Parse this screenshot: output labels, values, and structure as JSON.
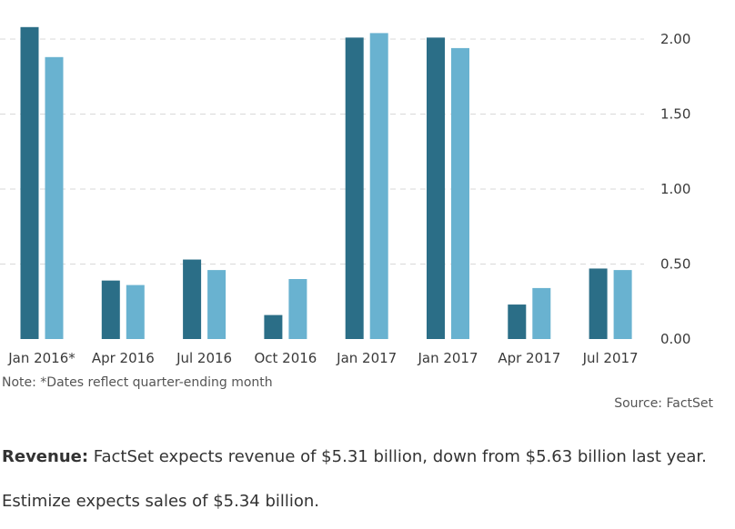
{
  "chart_data": {
    "type": "bar",
    "categories": [
      "Jan 2016*",
      "Apr 2016",
      "Jul 2016",
      "Oct 2016",
      "Jan 2017",
      "Jan 2017",
      "Apr 2017",
      "Jul 2017"
    ],
    "series": [
      {
        "values": [
          2.08,
          0.39,
          0.53,
          0.16,
          2.01,
          2.01,
          0.23,
          0.47
        ]
      },
      {
        "values": [
          1.88,
          0.36,
          0.46,
          0.4,
          2.04,
          1.94,
          0.34,
          0.46
        ]
      }
    ],
    "colors": [
      "#2b6e87",
      "#69b2d0"
    ],
    "ylim": [
      0,
      2.2
    ],
    "yticks": [
      "0.00",
      "0.50",
      "1.00",
      "1.50",
      "2.00"
    ],
    "ytick_values": [
      0,
      0.5,
      1.0,
      1.5,
      2.0
    ],
    "y_axis_side": "right",
    "grid": true,
    "title": "",
    "xlabel": "",
    "ylabel": ""
  },
  "note": "Note: *Dates reflect quarter-ending month",
  "source": "Source: FactSet",
  "revenue": {
    "label": "Revenue:",
    "text": " FactSet expects revenue of $5.31 billion, down from $5.63 billion last year."
  },
  "estimize": "Estimize expects sales of $5.34 billion."
}
